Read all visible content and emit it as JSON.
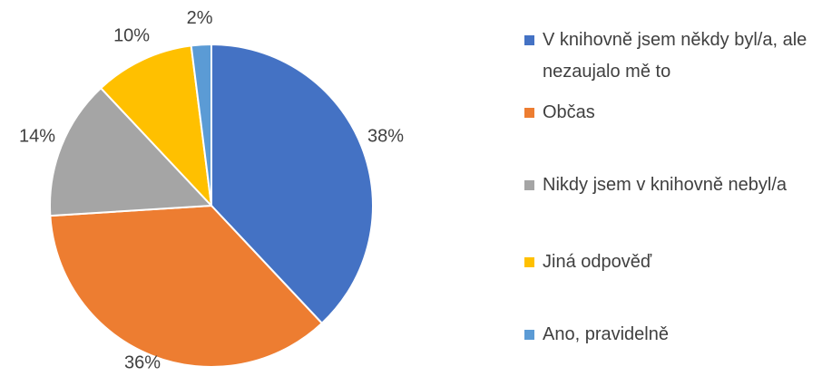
{
  "chart_data": {
    "type": "pie",
    "categories": [
      "V knihovně jsem někdy byl/a, ale nezaujalo mě to",
      "Občas",
      "Nikdy jsem v knihovně nebyl/a",
      "Jiná odpověď",
      "Ano, pravidelně"
    ],
    "values": [
      38,
      36,
      14,
      10,
      2
    ],
    "value_labels": [
      "38%",
      "36%",
      "14%",
      "10%",
      "2%"
    ],
    "colors": [
      "#4472c4",
      "#ed7d31",
      "#a5a5a5",
      "#ffc000",
      "#5b9bd5"
    ],
    "legend": "right"
  }
}
